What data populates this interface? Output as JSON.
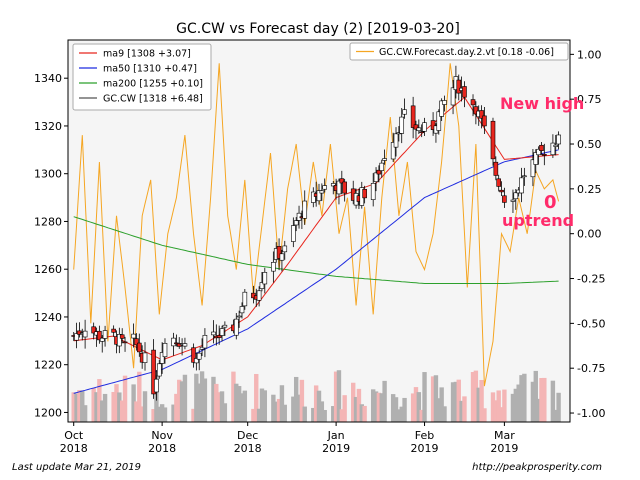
{
  "chart_data": {
    "type": "candlestick",
    "title": "GC.CW vs Forecast day (2)  [2019-03-20]",
    "x_tick_labels": [
      [
        "Oct",
        "2018"
      ],
      [
        "Nov",
        "2018"
      ],
      [
        "Dec",
        "2018"
      ],
      [
        "Jan",
        "2019"
      ],
      [
        "Feb",
        "2019"
      ],
      [
        "Mar",
        "2019"
      ]
    ],
    "x_tick_dates": [
      "2018-10-01",
      "2018-11-01",
      "2018-12-01",
      "2019-01-01",
      "2019-02-01",
      "2019-03-01"
    ],
    "x_range": [
      "2018-09-29",
      "2019-03-24"
    ],
    "y_left": {
      "range": [
        1196,
        1356
      ],
      "ticks": [
        1200,
        1220,
        1240,
        1260,
        1280,
        1300,
        1320,
        1340
      ]
    },
    "y_right": {
      "range": [
        -1.05,
        1.08
      ],
      "ticks": [
        "1.00",
        "0.75",
        "0.50",
        "0.25",
        "0.00",
        "-0.25",
        "-0.50",
        "-0.75",
        "-1.00"
      ],
      "tick_values": [
        1.0,
        0.75,
        0.5,
        0.25,
        0.0,
        -0.25,
        -0.5,
        -0.75,
        -1.0
      ]
    },
    "grid": false,
    "legend_left": {
      "placement": "top-left",
      "entries": [
        {
          "label": "ma9 [1308 +3.07]",
          "color": "#e8261e"
        },
        {
          "label": "ma50 [1310 +0.47]",
          "color": "#1f2ce0"
        },
        {
          "label": "ma200 [1255 +0.10]",
          "color": "#2ca02c"
        },
        {
          "label": "GC.CW [1318 +6.48]",
          "color": "#555555"
        }
      ]
    },
    "legend_right": {
      "placement": "top-right",
      "entries": [
        {
          "label": "GC.CW.Forecast.day.2.vt [0.18 -0.06]",
          "color": "#f5a623"
        }
      ]
    },
    "annotations": [
      {
        "text": "New high",
        "color": "#ff2b6a"
      },
      {
        "text": "0",
        "color": "#ff2b6a"
      },
      {
        "text": "uptrend",
        "color": "#ff2b6a"
      }
    ],
    "colors": {
      "up_candle": "#ffffff",
      "down_candle": "#e8261e",
      "volume_up": "#b0b0b0",
      "volume_down": "#f4b5b5",
      "plot_bg": "#f5f5f5"
    },
    "close_anchors": [
      [
        "2018-10-01",
        1232
      ],
      [
        "2018-10-05",
        1236
      ],
      [
        "2018-10-10",
        1232
      ],
      [
        "2018-10-15",
        1232
      ],
      [
        "2018-10-19",
        1228
      ],
      [
        "2018-10-22",
        1230
      ],
      [
        "2018-10-26",
        1222
      ],
      [
        "2018-10-29",
        1210
      ],
      [
        "2018-11-01",
        1228
      ],
      [
        "2018-11-05",
        1232
      ],
      [
        "2018-11-09",
        1228
      ],
      [
        "2018-11-13",
        1222
      ],
      [
        "2018-11-16",
        1230
      ],
      [
        "2018-11-21",
        1232
      ],
      [
        "2018-11-26",
        1236
      ],
      [
        "2018-11-30",
        1248
      ],
      [
        "2018-12-04",
        1250
      ],
      [
        "2018-12-07",
        1260
      ],
      [
        "2018-12-11",
        1266
      ],
      [
        "2018-12-14",
        1268
      ],
      [
        "2018-12-18",
        1280
      ],
      [
        "2018-12-21",
        1286
      ],
      [
        "2018-12-24",
        1290
      ],
      [
        "2018-12-27",
        1294
      ],
      [
        "2018-12-31",
        1296
      ],
      [
        "2019-01-03",
        1294
      ],
      [
        "2019-01-07",
        1290
      ],
      [
        "2019-01-11",
        1292
      ],
      [
        "2019-01-15",
        1298
      ],
      [
        "2019-01-18",
        1308
      ],
      [
        "2019-01-22",
        1318
      ],
      [
        "2019-01-25",
        1324
      ],
      [
        "2019-01-28",
        1320
      ],
      [
        "2019-01-31",
        1318
      ],
      [
        "2019-02-04",
        1320
      ],
      [
        "2019-02-08",
        1330
      ],
      [
        "2019-02-12",
        1338
      ],
      [
        "2019-02-15",
        1334
      ],
      [
        "2019-02-19",
        1328
      ],
      [
        "2019-02-22",
        1318
      ],
      [
        "2019-02-26",
        1300
      ],
      [
        "2019-03-01",
        1290
      ],
      [
        "2019-03-05",
        1292
      ],
      [
        "2019-03-08",
        1300
      ],
      [
        "2019-03-12",
        1306
      ],
      [
        "2019-03-15",
        1310
      ],
      [
        "2019-03-19",
        1314
      ],
      [
        "2019-03-20",
        1318
      ]
    ],
    "ma9_anchors": [
      [
        "2018-10-01",
        1230
      ],
      [
        "2018-10-15",
        1232
      ],
      [
        "2018-11-01",
        1222
      ],
      [
        "2018-11-15",
        1228
      ],
      [
        "2018-12-01",
        1240
      ],
      [
        "2018-12-15",
        1262
      ],
      [
        "2019-01-01",
        1290
      ],
      [
        "2019-01-15",
        1296
      ],
      [
        "2019-02-01",
        1318
      ],
      [
        "2019-02-15",
        1332
      ],
      [
        "2019-03-01",
        1306
      ],
      [
        "2019-03-20",
        1308
      ]
    ],
    "ma50_anchors": [
      [
        "2018-10-01",
        1208
      ],
      [
        "2018-11-01",
        1218
      ],
      [
        "2018-12-01",
        1235
      ],
      [
        "2019-01-01",
        1260
      ],
      [
        "2019-02-01",
        1290
      ],
      [
        "2019-03-01",
        1305
      ],
      [
        "2019-03-20",
        1310
      ]
    ],
    "ma200_anchors": [
      [
        "2018-10-01",
        1282
      ],
      [
        "2018-11-01",
        1270
      ],
      [
        "2018-12-01",
        1262
      ],
      [
        "2019-01-01",
        1257
      ],
      [
        "2019-02-01",
        1254
      ],
      [
        "2019-03-01",
        1254
      ],
      [
        "2019-03-20",
        1255
      ]
    ],
    "forecast_anchors": [
      [
        "2018-10-01",
        -0.2
      ],
      [
        "2018-10-04",
        0.55
      ],
      [
        "2018-10-07",
        -0.5
      ],
      [
        "2018-10-10",
        0.4
      ],
      [
        "2018-10-13",
        -0.6
      ],
      [
        "2018-10-16",
        0.1
      ],
      [
        "2018-10-19",
        -0.3
      ],
      [
        "2018-10-22",
        -0.75
      ],
      [
        "2018-10-25",
        0.1
      ],
      [
        "2018-10-28",
        0.3
      ],
      [
        "2018-10-31",
        -0.45
      ],
      [
        "2018-11-03",
        0.0
      ],
      [
        "2018-11-06",
        0.2
      ],
      [
        "2018-11-09",
        0.55
      ],
      [
        "2018-11-12",
        0.0
      ],
      [
        "2018-11-15",
        -0.4
      ],
      [
        "2018-11-18",
        0.2
      ],
      [
        "2018-11-21",
        0.95
      ],
      [
        "2018-11-24",
        0.1
      ],
      [
        "2018-11-27",
        -0.2
      ],
      [
        "2018-11-30",
        0.3
      ],
      [
        "2018-12-03",
        -0.35
      ],
      [
        "2018-12-06",
        0.05
      ],
      [
        "2018-12-09",
        0.45
      ],
      [
        "2018-12-12",
        -0.2
      ],
      [
        "2018-12-15",
        0.25
      ],
      [
        "2018-12-18",
        0.5
      ],
      [
        "2018-12-21",
        0.05
      ],
      [
        "2018-12-24",
        0.4
      ],
      [
        "2018-12-27",
        0.1
      ],
      [
        "2018-12-30",
        0.5
      ],
      [
        "2019-01-02",
        0.0
      ],
      [
        "2019-01-05",
        0.2
      ],
      [
        "2019-01-08",
        -0.4
      ],
      [
        "2019-01-11",
        0.15
      ],
      [
        "2019-01-14",
        -0.45
      ],
      [
        "2019-01-17",
        0.2
      ],
      [
        "2019-01-20",
        0.65
      ],
      [
        "2019-01-23",
        0.1
      ],
      [
        "2019-01-26",
        0.4
      ],
      [
        "2019-01-29",
        -0.1
      ],
      [
        "2019-02-01",
        -0.2
      ],
      [
        "2019-02-04",
        0.0
      ],
      [
        "2019-02-07",
        0.4
      ],
      [
        "2019-02-10",
        0.95
      ],
      [
        "2019-02-13",
        0.6
      ],
      [
        "2019-02-16",
        -0.3
      ],
      [
        "2019-02-19",
        0.5
      ],
      [
        "2019-02-22",
        -0.85
      ],
      [
        "2019-02-25",
        -0.6
      ],
      [
        "2019-02-28",
        0.0
      ],
      [
        "2019-03-03",
        -0.1
      ],
      [
        "2019-03-06",
        0.2
      ],
      [
        "2019-03-09",
        0.0
      ],
      [
        "2019-03-12",
        0.35
      ],
      [
        "2019-03-15",
        0.25
      ],
      [
        "2019-03-18",
        0.3
      ],
      [
        "2019-03-20",
        0.18
      ]
    ]
  },
  "footer": {
    "left": "Last update Mar 21, 2019",
    "right": "http://peakprosperity.com"
  }
}
